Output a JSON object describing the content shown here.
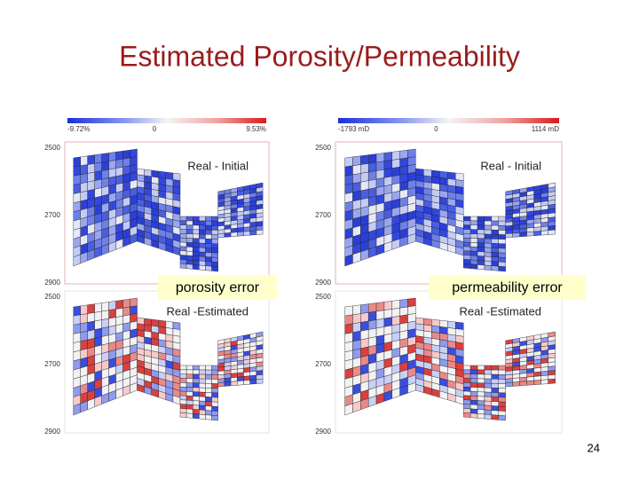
{
  "title": "Estimated Porosity/Permeability",
  "panels": [
    {
      "colorbar": {
        "min_label": "-9.72%",
        "mid_label": "0",
        "max_label": "9.53%"
      },
      "plots": [
        {
          "label": "Real - Initial",
          "depth_ticks": [
            "2500",
            "2700",
            "2900"
          ]
        },
        {
          "label": "Real -Estimated",
          "depth_ticks": [
            "2500",
            "2700",
            "2900"
          ]
        }
      ],
      "callout": "porosity error"
    },
    {
      "colorbar": {
        "min_label": "-1793 mD",
        "mid_label": "0",
        "max_label": "1114 mD"
      },
      "plots": [
        {
          "label": "Real - Initial",
          "depth_ticks": [
            "2500",
            "2700",
            "2900"
          ]
        },
        {
          "label": "Real -Estimated",
          "depth_ticks": [
            "2500",
            "2700",
            "2900"
          ]
        }
      ],
      "callout": "permeability error"
    }
  ],
  "page_number": "24"
}
